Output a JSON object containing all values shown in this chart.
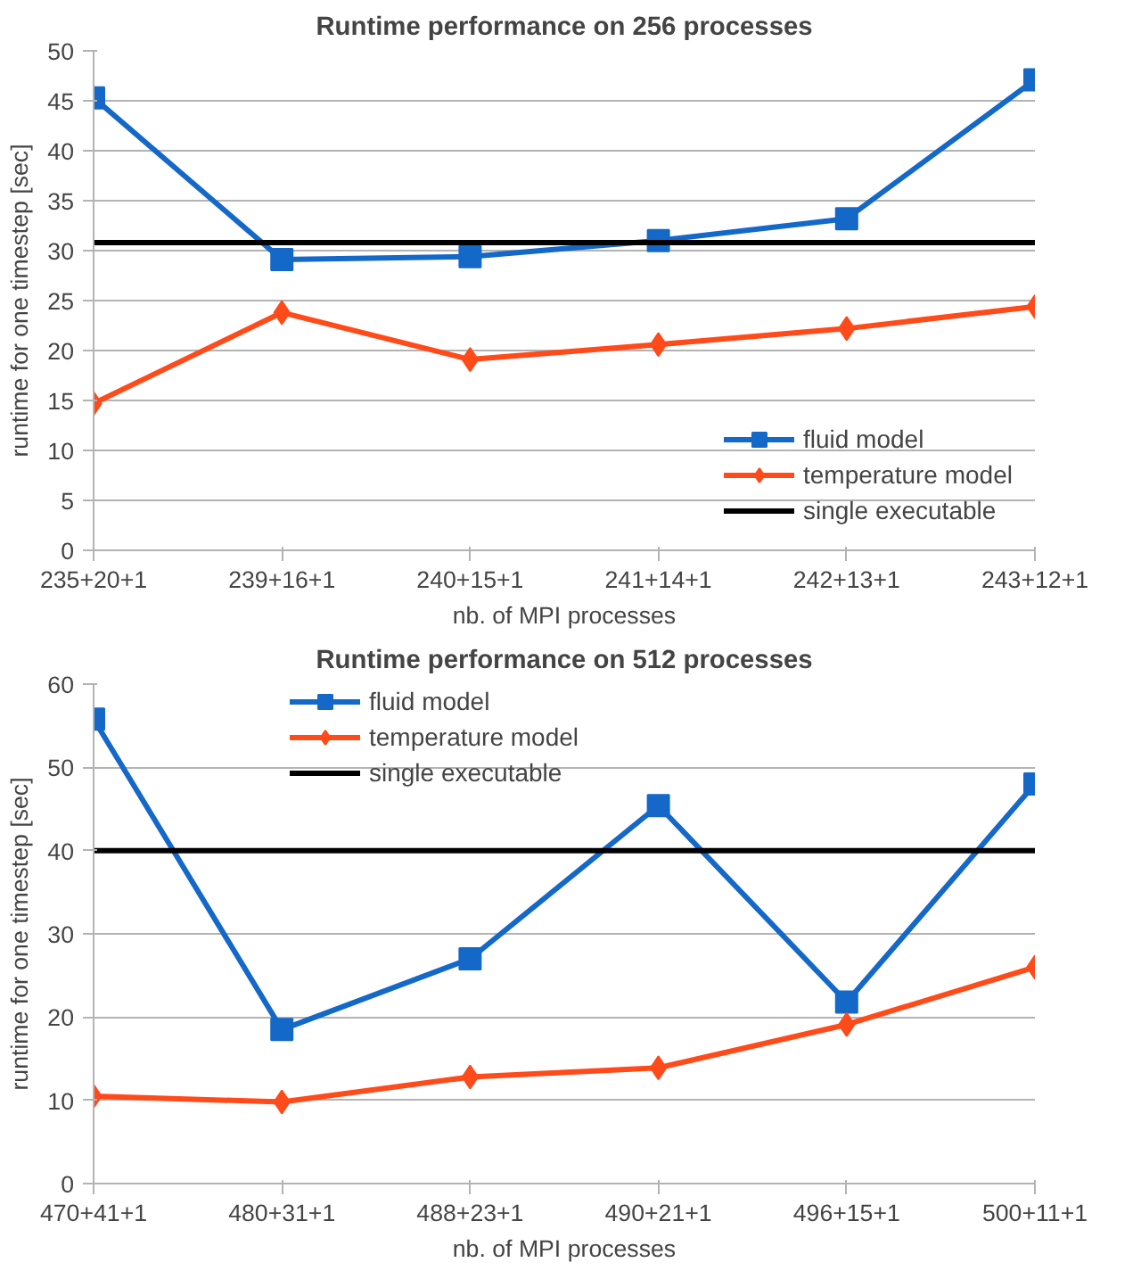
{
  "chart_data": [
    {
      "type": "line",
      "title": "Runtime performance on 256 processes",
      "xlabel": "nb. of MPI processes",
      "ylabel": "runtime for one timestep [sec]",
      "categories": [
        "235+20+1",
        "239+16+1",
        "240+15+1",
        "241+14+1",
        "242+13+1",
        "243+12+1"
      ],
      "series": [
        {
          "name": "fluid model",
          "color": "#1468c8",
          "marker": "square",
          "values": [
            45.3,
            29.1,
            29.4,
            31.0,
            33.2,
            47.1
          ]
        },
        {
          "name": "temperature model",
          "color": "#ff4a1a",
          "marker": "diamond",
          "values": [
            14.7,
            23.8,
            19.1,
            20.6,
            22.2,
            24.4
          ]
        },
        {
          "name": "single executable",
          "color": "#000000",
          "marker": "none",
          "values": [
            30.8,
            30.8,
            30.8,
            30.8,
            30.8,
            30.8
          ]
        }
      ],
      "ylim": [
        0,
        50
      ],
      "yticks": [
        0,
        5,
        10,
        15,
        20,
        25,
        30,
        35,
        40,
        45,
        50
      ],
      "grid": "y",
      "legend": "bottom right"
    },
    {
      "type": "line",
      "title": "Runtime performance on 512 processes",
      "xlabel": "nb. of MPI processes",
      "ylabel": "runtime for one timestep [sec]",
      "categories": [
        "470+41+1",
        "480+31+1",
        "488+23+1",
        "490+21+1",
        "496+15+1",
        "500+11+1"
      ],
      "series": [
        {
          "name": "fluid model",
          "color": "#1468c8",
          "marker": "square",
          "values": [
            55.8,
            18.5,
            27.0,
            45.4,
            21.8,
            48.0
          ]
        },
        {
          "name": "temperature model",
          "color": "#ff4a1a",
          "marker": "diamond",
          "values": [
            10.5,
            9.8,
            12.8,
            13.9,
            19.1,
            26.0
          ]
        },
        {
          "name": "single executable",
          "color": "#000000",
          "marker": "none",
          "values": [
            40,
            40,
            40,
            40,
            40,
            40
          ]
        }
      ],
      "ylim": [
        0,
        60
      ],
      "yticks": [
        0,
        10,
        20,
        30,
        40,
        50,
        60
      ],
      "grid": "y",
      "legend": "top left"
    }
  ]
}
